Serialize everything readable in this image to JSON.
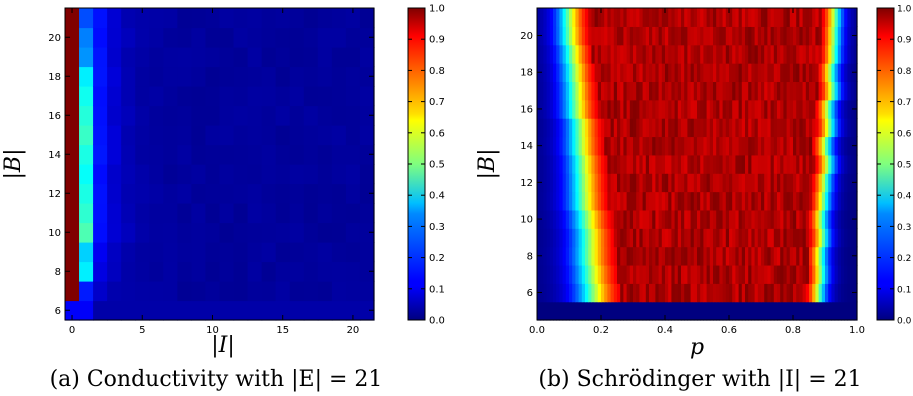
{
  "chart_data": [
    {
      "type": "heatmap",
      "title": "",
      "caption": "(a) Conductivity with |E| = 21",
      "xlabel": "|I|",
      "ylabel": "|B|",
      "x_range": [
        -0.5,
        21.5
      ],
      "y_range": [
        5.5,
        21.5
      ],
      "x_ticks": [
        "0",
        "5",
        "10",
        "15",
        "20"
      ],
      "y_ticks": [
        "6",
        "8",
        "10",
        "12",
        "14",
        "16",
        "18",
        "20"
      ],
      "colorbar": {
        "min": 0.0,
        "max": 1.0,
        "colormap": "jet",
        "ticks": [
          "0.0",
          "0.1",
          "0.2",
          "0.3",
          "0.4",
          "0.5",
          "0.6",
          "0.7",
          "0.8",
          "0.9",
          "1.0"
        ]
      },
      "grid": false,
      "description_of_values": "Column |I|=0 is 1.0 for |B| 7-21 and ~0.12 at |B|=6; column |I|=1 rises to 0.3-0.5; columns |I|>=2 decay toward 0."
    },
    {
      "type": "heatmap",
      "title": "",
      "caption": "(b) Schrödinger with |I| = 21",
      "xlabel": "p",
      "ylabel": "|B|",
      "x_range": [
        0.0,
        1.0
      ],
      "y_range": [
        4.5,
        21.5
      ],
      "x_ticks": [
        "0.0",
        "0.2",
        "0.4",
        "0.6",
        "0.8",
        "1.0"
      ],
      "y_ticks": [
        "6",
        "8",
        "10",
        "12",
        "14",
        "16",
        "18",
        "20"
      ],
      "colorbar": {
        "min": 0.0,
        "max": 1.0,
        "colormap": "jet",
        "ticks": [
          "0.0",
          "0.1",
          "0.2",
          "0.3",
          "0.4",
          "0.5",
          "0.6",
          "0.7",
          "0.8",
          "0.9",
          "1.0"
        ]
      },
      "grid": false,
      "transition": {
        "lower_p_at_B6": 0.17,
        "lower_p_at_B21": 0.1,
        "upper_p_at_B6": 0.88,
        "upper_p_at_B21": 0.93,
        "rows_below_B5_5": 0.0
      }
    }
  ]
}
